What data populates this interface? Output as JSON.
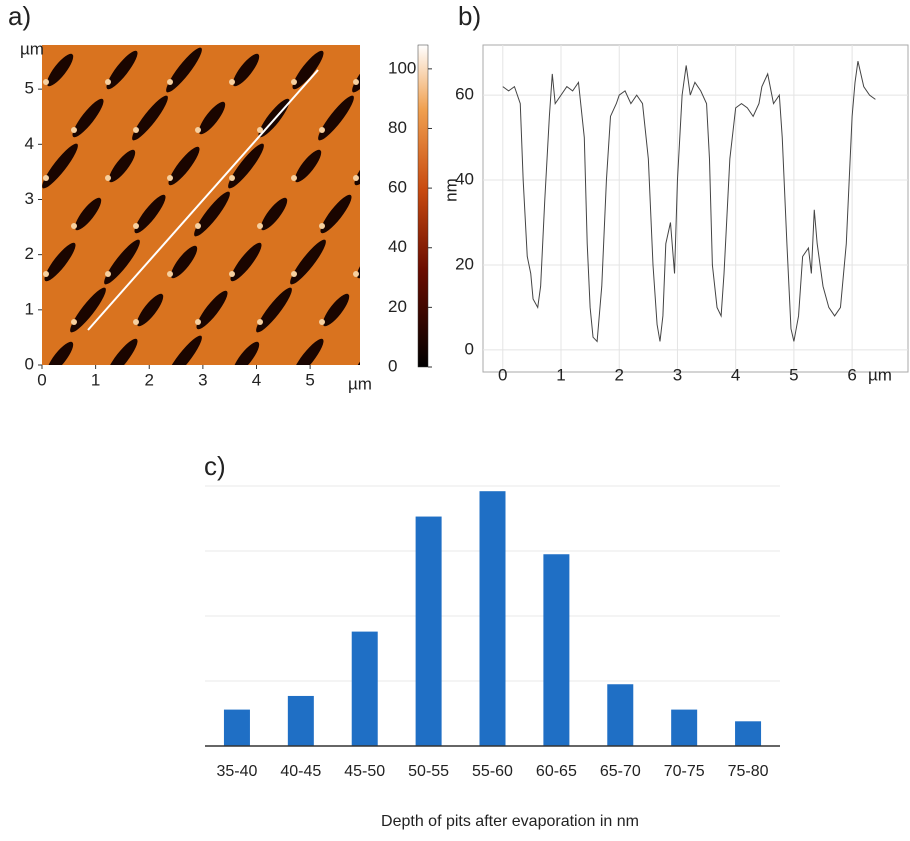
{
  "chart_data": [
    {
      "type": "heatmap",
      "label": "a)",
      "xlabel": "µm",
      "ylabel": "µm",
      "colorbar_label": "nm",
      "xlim": [
        0,
        5.93
      ],
      "ylim": [
        0,
        5.8
      ],
      "xticks": [
        0,
        1,
        2,
        3,
        4,
        5
      ],
      "yticks": [
        0,
        1,
        2,
        3,
        4,
        5
      ],
      "clim": [
        0,
        108
      ],
      "cticks": [
        0,
        20,
        40,
        60,
        80,
        100
      ]
    },
    {
      "type": "line",
      "label": "b)",
      "xlabel": "µm",
      "color": "#444444",
      "grid": true,
      "xlim": [
        -0.34,
        6.96
      ],
      "ylim": [
        -5.2,
        71.8
      ],
      "xticks": [
        0,
        1,
        2,
        3,
        4,
        5,
        6
      ],
      "yticks": [
        0,
        20,
        40,
        60
      ],
      "x": [
        0.0,
        0.1,
        0.2,
        0.3,
        0.35,
        0.42,
        0.48,
        0.52,
        0.6,
        0.65,
        0.72,
        0.8,
        0.85,
        0.9,
        1.0,
        1.1,
        1.2,
        1.3,
        1.4,
        1.45,
        1.5,
        1.55,
        1.62,
        1.7,
        1.78,
        1.85,
        1.95,
        2.0,
        2.1,
        2.2,
        2.3,
        2.4,
        2.5,
        2.58,
        2.65,
        2.7,
        2.75,
        2.8,
        2.88,
        2.95,
        3.0,
        3.08,
        3.15,
        3.22,
        3.3,
        3.4,
        3.5,
        3.55,
        3.6,
        3.68,
        3.75,
        3.8,
        3.9,
        4.0,
        4.1,
        4.2,
        4.3,
        4.4,
        4.45,
        4.55,
        4.65,
        4.75,
        4.8,
        4.88,
        4.95,
        5.0,
        5.08,
        5.15,
        5.25,
        5.3,
        5.35,
        5.4,
        5.5,
        5.6,
        5.7,
        5.8,
        5.9,
        6.0,
        6.05,
        6.1,
        6.2,
        6.3,
        6.4
      ],
      "values": [
        62,
        61,
        62,
        58,
        40,
        22,
        18,
        12,
        10,
        15,
        35,
        55,
        65,
        58,
        60,
        62,
        61,
        63,
        50,
        25,
        10,
        3,
        2,
        15,
        40,
        55,
        58,
        60,
        61,
        58,
        60,
        58,
        45,
        20,
        6,
        2,
        8,
        25,
        30,
        18,
        40,
        60,
        67,
        60,
        63,
        61,
        58,
        45,
        20,
        10,
        8,
        18,
        45,
        57,
        58,
        57,
        55,
        58,
        62,
        65,
        58,
        60,
        50,
        25,
        5,
        2,
        8,
        22,
        24,
        18,
        33,
        25,
        15,
        10,
        8,
        10,
        25,
        55,
        63,
        68,
        62,
        60,
        59
      ]
    },
    {
      "type": "bar",
      "label": "c)",
      "xlabel": "Depth of pits after evaporation in nm",
      "color": "#1f6fc5",
      "grid": true,
      "categories": [
        "35-40",
        "40-45",
        "45-50",
        "50-55",
        "55-60",
        "60-65",
        "65-70",
        "70-75",
        "75-80"
      ],
      "values": [
        0.56,
        0.77,
        1.76,
        3.53,
        3.92,
        2.95,
        0.95,
        0.56,
        0.38
      ],
      "ylim": [
        0,
        4
      ],
      "yticks": [
        0,
        1,
        2,
        3,
        4
      ]
    }
  ]
}
